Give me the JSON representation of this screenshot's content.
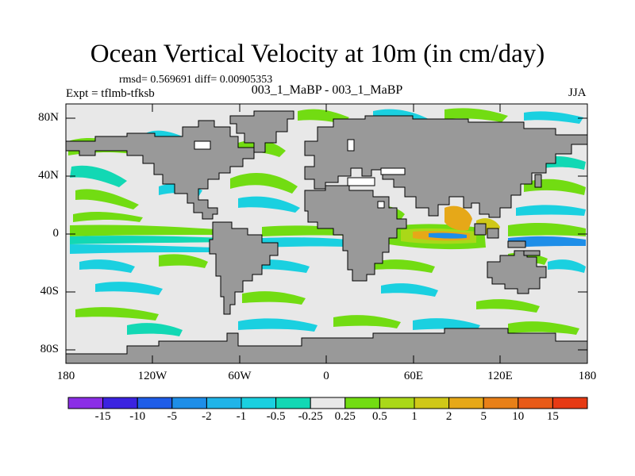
{
  "title": "Ocean Vertical Velocity at 10m (in cm/day)",
  "stats": "rmsd= 0.569691 diff= 0.00905353",
  "expt": "Expt = tflmb-tfksb",
  "center_label": "003_1_MaBP - 003_1_MaBP",
  "season": "JJA",
  "y_ticks": [
    "80N",
    "40N",
    "0",
    "40S",
    "80S"
  ],
  "x_ticks": [
    "180",
    "120W",
    "60W",
    "0",
    "60E",
    "120E",
    "180"
  ],
  "colorbar": {
    "labels": [
      "-15",
      "-10",
      "-5",
      "-2",
      "-1",
      "-0.5",
      "-0.25",
      "0.25",
      "0.5",
      "1",
      "2",
      "5",
      "10",
      "15"
    ],
    "colors": [
      "#8b2ee6",
      "#3b23e0",
      "#1f5de8",
      "#1e8ee8",
      "#20b4e8",
      "#1ad0e0",
      "#12d8b4",
      "#e8e8e8",
      "#72dc12",
      "#aad818",
      "#d0c818",
      "#e6a818",
      "#e88018",
      "#e85a18",
      "#e63a14"
    ]
  },
  "land_color": "#999999",
  "ocean_color": "#e8e8e8"
}
